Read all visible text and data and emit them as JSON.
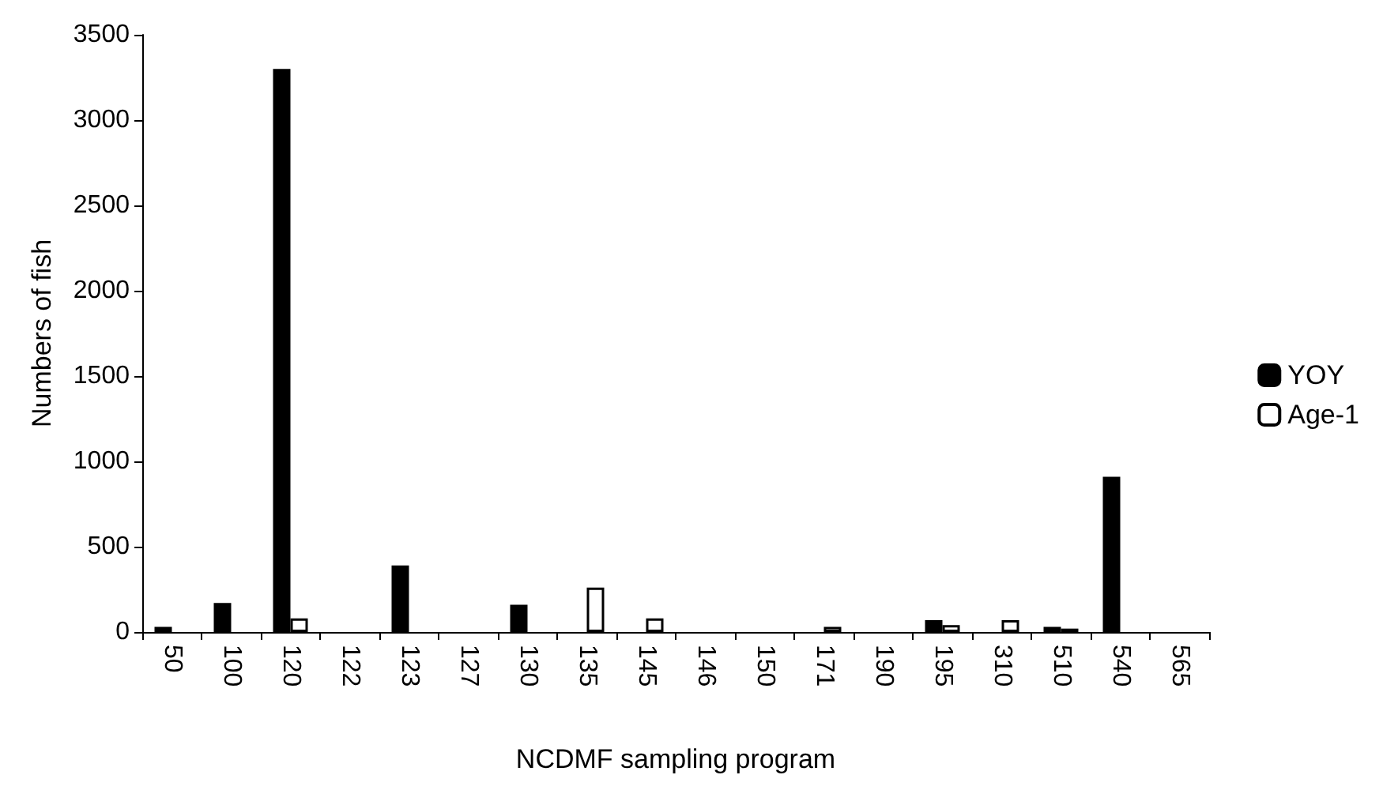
{
  "chart_data": {
    "type": "bar",
    "xlabel": "NCDMF sampling program",
    "ylabel": "Numbers of fish",
    "categories": [
      "50",
      "100",
      "120",
      "122",
      "123",
      "127",
      "130",
      "135",
      "145",
      "146",
      "150",
      "171",
      "190",
      "195",
      "310",
      "510",
      "540",
      "565"
    ],
    "series": [
      {
        "name": "YOY",
        "color": "#000000",
        "values": [
          30,
          170,
          3300,
          null,
          390,
          null,
          160,
          null,
          null,
          null,
          null,
          null,
          null,
          70,
          null,
          30,
          910,
          null
        ]
      },
      {
        "name": "Age-1",
        "color": "#ffffff",
        "values": [
          null,
          null,
          80,
          null,
          null,
          null,
          null,
          260,
          80,
          null,
          null,
          30,
          null,
          40,
          70,
          20,
          null,
          null
        ]
      }
    ],
    "ylim": [
      0,
      3500
    ],
    "yticks": [
      0,
      500,
      1000,
      1500,
      2000,
      2500,
      3000,
      3500
    ],
    "grid": false,
    "legend": "right"
  }
}
